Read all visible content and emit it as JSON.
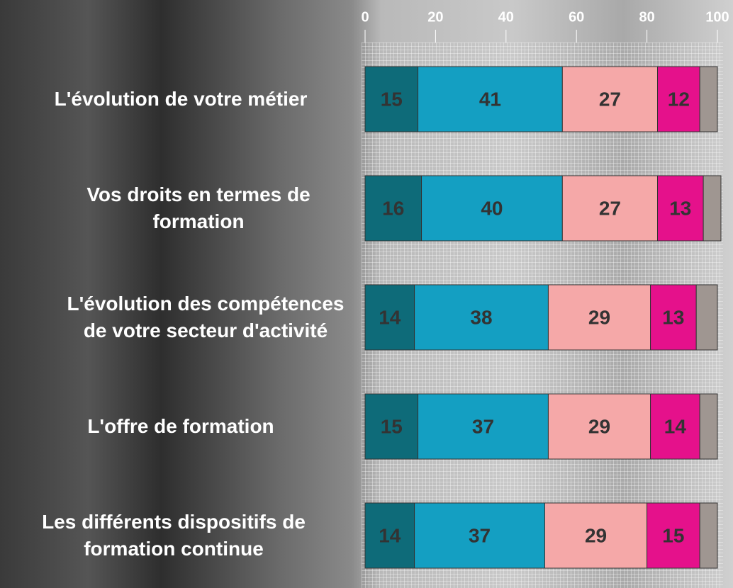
{
  "chart_data": {
    "type": "stacked-bar-horizontal",
    "categories": [
      "L'évolution de votre métier",
      "Vos droits en termes de formation",
      "L'évolution des compétences de votre secteur d'activité",
      "L'offre de formation",
      "Les différents dispositifs de formation continue"
    ],
    "series": [
      {
        "color": "#0e6b79",
        "values": [
          15,
          16,
          14,
          15,
          14
        ]
      },
      {
        "color": "#149fc2",
        "values": [
          41,
          40,
          38,
          37,
          37
        ]
      },
      {
        "color": "#f5a8a8",
        "values": [
          27,
          27,
          29,
          29,
          29
        ]
      },
      {
        "color": "#e5118b",
        "values": [
          12,
          13,
          13,
          14,
          15
        ]
      },
      {
        "color": "#9f9691",
        "values": [
          5,
          5,
          6,
          5,
          5
        ]
      }
    ],
    "xlim": [
      0,
      100
    ],
    "xticks": [
      0,
      20,
      40,
      60,
      80,
      100
    ]
  }
}
